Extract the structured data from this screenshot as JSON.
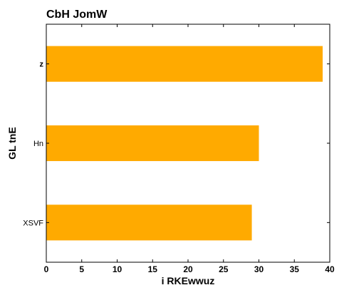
{
  "chart_data": {
    "type": "bar",
    "orientation": "horizontal",
    "title": "CbH JomW",
    "xlabel": "i RKEwwuz",
    "ylabel": "GL tnE",
    "categories": [
      "XSVF",
      "Hn",
      "z"
    ],
    "values": [
      29,
      30,
      39
    ],
    "xlim": [
      0,
      40
    ],
    "xticks": [
      0,
      5,
      10,
      15,
      20,
      25,
      30,
      35,
      40
    ],
    "grid": false,
    "legend": "none",
    "bar_color": "#ffaa00"
  }
}
